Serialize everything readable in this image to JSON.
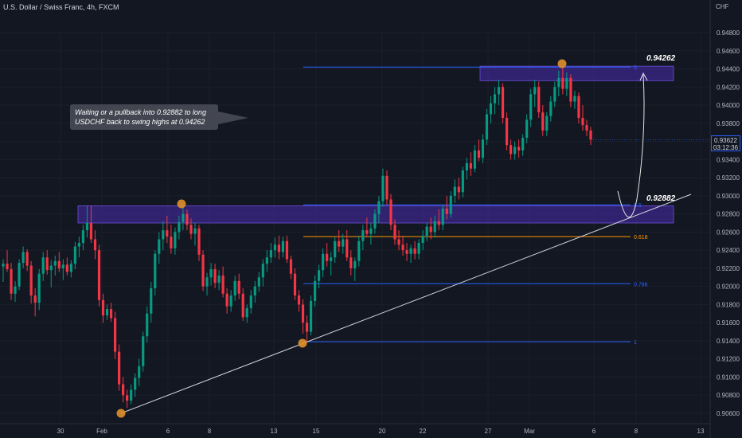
{
  "header": {
    "title": "U.S. Dollar / Swiss Franc, 4h, FXCM"
  },
  "axis": {
    "currency": "CHF"
  },
  "callout": {
    "text": "Waiting or a pullback into 0.92882 to long USDCHF back to swing highs at 0.94262"
  },
  "price_badge": {
    "price": "0.93622",
    "countdown": "03:12:36"
  },
  "colors": {
    "up": "#089981",
    "down": "#f23645",
    "zone": "#4b2bb0",
    "fib": "#2962ff",
    "fib618": "#ff9800",
    "trend": "#d1d4dc",
    "marker": "#e0902a"
  },
  "chart_data": {
    "type": "candlestick",
    "y_ticks": [
      "0.94800",
      "0.94600",
      "0.94400",
      "0.94200",
      "0.94000",
      "0.93800",
      "0.93600",
      "0.93400",
      "0.93200",
      "0.93000",
      "0.92800",
      "0.92600",
      "0.92400",
      "0.92200",
      "0.92000",
      "0.91800",
      "0.91600",
      "0.91400",
      "0.91200",
      "0.91000",
      "0.90800",
      "0.90600"
    ],
    "x_ticks": [
      "30",
      "Feb",
      "6",
      "8",
      "13",
      "15",
      "20",
      "22",
      "27",
      "Mar",
      "6",
      "8",
      "13"
    ],
    "fib_levels": [
      {
        "label": "0",
        "price": 0.9442
      },
      {
        "label": "0.5",
        "price": 0.929
      },
      {
        "label": "0.618",
        "price": 0.9255
      },
      {
        "label": "0.786",
        "price": 0.9203
      },
      {
        "label": "1",
        "price": 0.9139
      }
    ],
    "annotations": {
      "target": "0.94262",
      "entry": "0.92882"
    },
    "zones": [
      {
        "top": 0.9443,
        "bottom": 0.9427
      },
      {
        "top": 0.9289,
        "bottom": 0.927
      }
    ],
    "candles": [
      [
        0.9222,
        0.923,
        0.9205,
        0.9225
      ],
      [
        0.9225,
        0.924,
        0.9216,
        0.9219
      ],
      [
        0.9219,
        0.9226,
        0.9185,
        0.9192
      ],
      [
        0.9192,
        0.9206,
        0.9183,
        0.92
      ],
      [
        0.92,
        0.923,
        0.9196,
        0.9226
      ],
      [
        0.9226,
        0.9244,
        0.922,
        0.9238
      ],
      [
        0.9238,
        0.9241,
        0.9217,
        0.9223
      ],
      [
        0.9223,
        0.9228,
        0.9181,
        0.919
      ],
      [
        0.919,
        0.9198,
        0.9167,
        0.9182
      ],
      [
        0.9182,
        0.9219,
        0.9174,
        0.9214
      ],
      [
        0.9214,
        0.9238,
        0.9206,
        0.9232
      ],
      [
        0.9232,
        0.924,
        0.9213,
        0.9218
      ],
      [
        0.9218,
        0.9229,
        0.9199,
        0.9223
      ],
      [
        0.9223,
        0.9234,
        0.9212,
        0.9228
      ],
      [
        0.9228,
        0.9238,
        0.9216,
        0.922
      ],
      [
        0.922,
        0.923,
        0.9207,
        0.9224
      ],
      [
        0.9224,
        0.9232,
        0.9212,
        0.9216
      ],
      [
        0.9216,
        0.9229,
        0.921,
        0.9225
      ],
      [
        0.9225,
        0.9249,
        0.9219,
        0.9244
      ],
      [
        0.9244,
        0.9255,
        0.9232,
        0.9248
      ],
      [
        0.9248,
        0.9268,
        0.924,
        0.9262
      ],
      [
        0.9262,
        0.9289,
        0.9254,
        0.927
      ],
      [
        0.927,
        0.9289,
        0.9248,
        0.9252
      ],
      [
        0.9252,
        0.9262,
        0.923,
        0.924
      ],
      [
        0.924,
        0.9246,
        0.9178,
        0.9185
      ],
      [
        0.9185,
        0.9192,
        0.916,
        0.9168
      ],
      [
        0.9168,
        0.918,
        0.9163,
        0.9175
      ],
      [
        0.9175,
        0.9182,
        0.9161,
        0.9165
      ],
      [
        0.9165,
        0.9172,
        0.912,
        0.9128
      ],
      [
        0.9128,
        0.9136,
        0.9085,
        0.9092
      ],
      [
        0.9092,
        0.91,
        0.9072,
        0.908
      ],
      [
        0.908,
        0.9086,
        0.9066,
        0.9074
      ],
      [
        0.9074,
        0.9092,
        0.907,
        0.9086
      ],
      [
        0.9086,
        0.9104,
        0.9078,
        0.9099
      ],
      [
        0.9099,
        0.912,
        0.909,
        0.9112
      ],
      [
        0.9112,
        0.915,
        0.9106,
        0.9145
      ],
      [
        0.9145,
        0.9178,
        0.9138,
        0.917
      ],
      [
        0.917,
        0.9205,
        0.916,
        0.9198
      ],
      [
        0.9198,
        0.924,
        0.919,
        0.9236
      ],
      [
        0.9236,
        0.926,
        0.9225,
        0.9252
      ],
      [
        0.9252,
        0.9272,
        0.924,
        0.9262
      ],
      [
        0.9262,
        0.9278,
        0.9248,
        0.9255
      ],
      [
        0.9255,
        0.9268,
        0.9236,
        0.9242
      ],
      [
        0.9242,
        0.9265,
        0.9235,
        0.926
      ],
      [
        0.926,
        0.9278,
        0.9252,
        0.9271
      ],
      [
        0.9271,
        0.9289,
        0.9262,
        0.928
      ],
      [
        0.928,
        0.9285,
        0.9262,
        0.9268
      ],
      [
        0.9268,
        0.9275,
        0.9252,
        0.9258
      ],
      [
        0.9258,
        0.927,
        0.9245,
        0.9264
      ],
      [
        0.9264,
        0.9268,
        0.9228,
        0.9235
      ],
      [
        0.9235,
        0.924,
        0.9195,
        0.92
      ],
      [
        0.92,
        0.9215,
        0.919,
        0.921
      ],
      [
        0.921,
        0.9226,
        0.9201,
        0.9219
      ],
      [
        0.9219,
        0.9225,
        0.9198,
        0.9204
      ],
      [
        0.9204,
        0.9218,
        0.9196,
        0.9212
      ],
      [
        0.9212,
        0.9222,
        0.9188,
        0.9192
      ],
      [
        0.9192,
        0.9198,
        0.917,
        0.9178
      ],
      [
        0.9178,
        0.9196,
        0.9172,
        0.919
      ],
      [
        0.919,
        0.9212,
        0.9184,
        0.9206
      ],
      [
        0.9206,
        0.9214,
        0.9186,
        0.9192
      ],
      [
        0.9192,
        0.9198,
        0.9162,
        0.9166
      ],
      [
        0.9166,
        0.918,
        0.916,
        0.9176
      ],
      [
        0.9176,
        0.9196,
        0.917,
        0.919
      ],
      [
        0.919,
        0.9206,
        0.9182,
        0.92
      ],
      [
        0.92,
        0.9216,
        0.9194,
        0.921
      ],
      [
        0.921,
        0.923,
        0.92,
        0.9225
      ],
      [
        0.9225,
        0.924,
        0.9216,
        0.9232
      ],
      [
        0.9232,
        0.9248,
        0.9226,
        0.924
      ],
      [
        0.924,
        0.9254,
        0.9232,
        0.9246
      ],
      [
        0.9246,
        0.9256,
        0.923,
        0.9238
      ],
      [
        0.9238,
        0.9255,
        0.9232,
        0.925
      ],
      [
        0.925,
        0.9256,
        0.9226,
        0.923
      ],
      [
        0.923,
        0.9234,
        0.9208,
        0.9214
      ],
      [
        0.9214,
        0.922,
        0.9185,
        0.919
      ],
      [
        0.919,
        0.9196,
        0.9172,
        0.918
      ],
      [
        0.918,
        0.9186,
        0.9148,
        0.916
      ],
      [
        0.916,
        0.9168,
        0.9139,
        0.915
      ],
      [
        0.915,
        0.919,
        0.9146,
        0.9184
      ],
      [
        0.9184,
        0.9212,
        0.9178,
        0.9206
      ],
      [
        0.9206,
        0.9224,
        0.9198,
        0.9218
      ],
      [
        0.9218,
        0.9242,
        0.921,
        0.9236
      ],
      [
        0.9236,
        0.9248,
        0.9222,
        0.9228
      ],
      [
        0.9228,
        0.9238,
        0.9212,
        0.9232
      ],
      [
        0.9232,
        0.9254,
        0.9226,
        0.925
      ],
      [
        0.925,
        0.9262,
        0.9238,
        0.9244
      ],
      [
        0.9244,
        0.9258,
        0.9236,
        0.9252
      ],
      [
        0.9252,
        0.9262,
        0.9228,
        0.9232
      ],
      [
        0.9232,
        0.924,
        0.9212,
        0.922
      ],
      [
        0.922,
        0.9232,
        0.9206,
        0.9228
      ],
      [
        0.9228,
        0.9256,
        0.9222,
        0.925
      ],
      [
        0.925,
        0.9268,
        0.924,
        0.9262
      ],
      [
        0.9262,
        0.9276,
        0.9254,
        0.9258
      ],
      [
        0.9258,
        0.927,
        0.9246,
        0.9264
      ],
      [
        0.9264,
        0.9285,
        0.9258,
        0.928
      ],
      [
        0.928,
        0.93,
        0.927,
        0.9294
      ],
      [
        0.9294,
        0.933,
        0.9288,
        0.9322
      ],
      [
        0.9322,
        0.9328,
        0.929,
        0.9296
      ],
      [
        0.9296,
        0.9302,
        0.9262,
        0.9268
      ],
      [
        0.9268,
        0.9274,
        0.9246,
        0.9252
      ],
      [
        0.9252,
        0.9262,
        0.924,
        0.9246
      ],
      [
        0.9246,
        0.9256,
        0.9234,
        0.924
      ],
      [
        0.924,
        0.9248,
        0.9228,
        0.9236
      ],
      [
        0.9236,
        0.9246,
        0.9226,
        0.9242
      ],
      [
        0.9242,
        0.925,
        0.923,
        0.9236
      ],
      [
        0.9236,
        0.9252,
        0.923,
        0.9248
      ],
      [
        0.9248,
        0.9262,
        0.924,
        0.9256
      ],
      [
        0.9256,
        0.927,
        0.925,
        0.9266
      ],
      [
        0.9266,
        0.9276,
        0.9252,
        0.926
      ],
      [
        0.926,
        0.9278,
        0.9254,
        0.9272
      ],
      [
        0.9272,
        0.9285,
        0.9262,
        0.9268
      ],
      [
        0.9268,
        0.929,
        0.9262,
        0.9286
      ],
      [
        0.9286,
        0.93,
        0.9274,
        0.928
      ],
      [
        0.928,
        0.9305,
        0.9276,
        0.93
      ],
      [
        0.93,
        0.9318,
        0.9292,
        0.931
      ],
      [
        0.931,
        0.932,
        0.9296,
        0.9304
      ],
      [
        0.9304,
        0.9332,
        0.9298,
        0.9328
      ],
      [
        0.9328,
        0.9342,
        0.9318,
        0.9336
      ],
      [
        0.9336,
        0.9348,
        0.9322,
        0.933
      ],
      [
        0.933,
        0.9356,
        0.9326,
        0.935
      ],
      [
        0.935,
        0.9362,
        0.9338,
        0.9342
      ],
      [
        0.9342,
        0.9368,
        0.9336,
        0.9362
      ],
      [
        0.9362,
        0.9396,
        0.9356,
        0.939
      ],
      [
        0.939,
        0.941,
        0.938,
        0.9402
      ],
      [
        0.9402,
        0.942,
        0.939,
        0.9412
      ],
      [
        0.9412,
        0.9428,
        0.94,
        0.942
      ],
      [
        0.942,
        0.9424,
        0.938,
        0.9386
      ],
      [
        0.9386,
        0.9392,
        0.935,
        0.9356
      ],
      [
        0.9356,
        0.9362,
        0.934,
        0.9346
      ],
      [
        0.9346,
        0.936,
        0.934,
        0.9354
      ],
      [
        0.9354,
        0.9362,
        0.9342,
        0.935
      ],
      [
        0.935,
        0.9368,
        0.9344,
        0.9364
      ],
      [
        0.9364,
        0.939,
        0.9358,
        0.9384
      ],
      [
        0.9384,
        0.9418,
        0.9376,
        0.9412
      ],
      [
        0.9412,
        0.9428,
        0.9398,
        0.942
      ],
      [
        0.942,
        0.9426,
        0.9386,
        0.9392
      ],
      [
        0.9392,
        0.94,
        0.9366,
        0.9372
      ],
      [
        0.9372,
        0.9392,
        0.9366,
        0.9388
      ],
      [
        0.9388,
        0.941,
        0.9382,
        0.9404
      ],
      [
        0.9404,
        0.9426,
        0.9398,
        0.942
      ],
      [
        0.942,
        0.9438,
        0.941,
        0.943
      ],
      [
        0.943,
        0.9442,
        0.9412,
        0.9418
      ],
      [
        0.9418,
        0.9436,
        0.941,
        0.943
      ],
      [
        0.943,
        0.9434,
        0.9398,
        0.9404
      ],
      [
        0.9404,
        0.9416,
        0.9396,
        0.941
      ],
      [
        0.941,
        0.9414,
        0.938,
        0.9386
      ],
      [
        0.9386,
        0.94,
        0.9372,
        0.9378
      ],
      [
        0.9378,
        0.9384,
        0.9366,
        0.9372
      ],
      [
        0.9372,
        0.9376,
        0.9356,
        0.9362
      ]
    ]
  }
}
